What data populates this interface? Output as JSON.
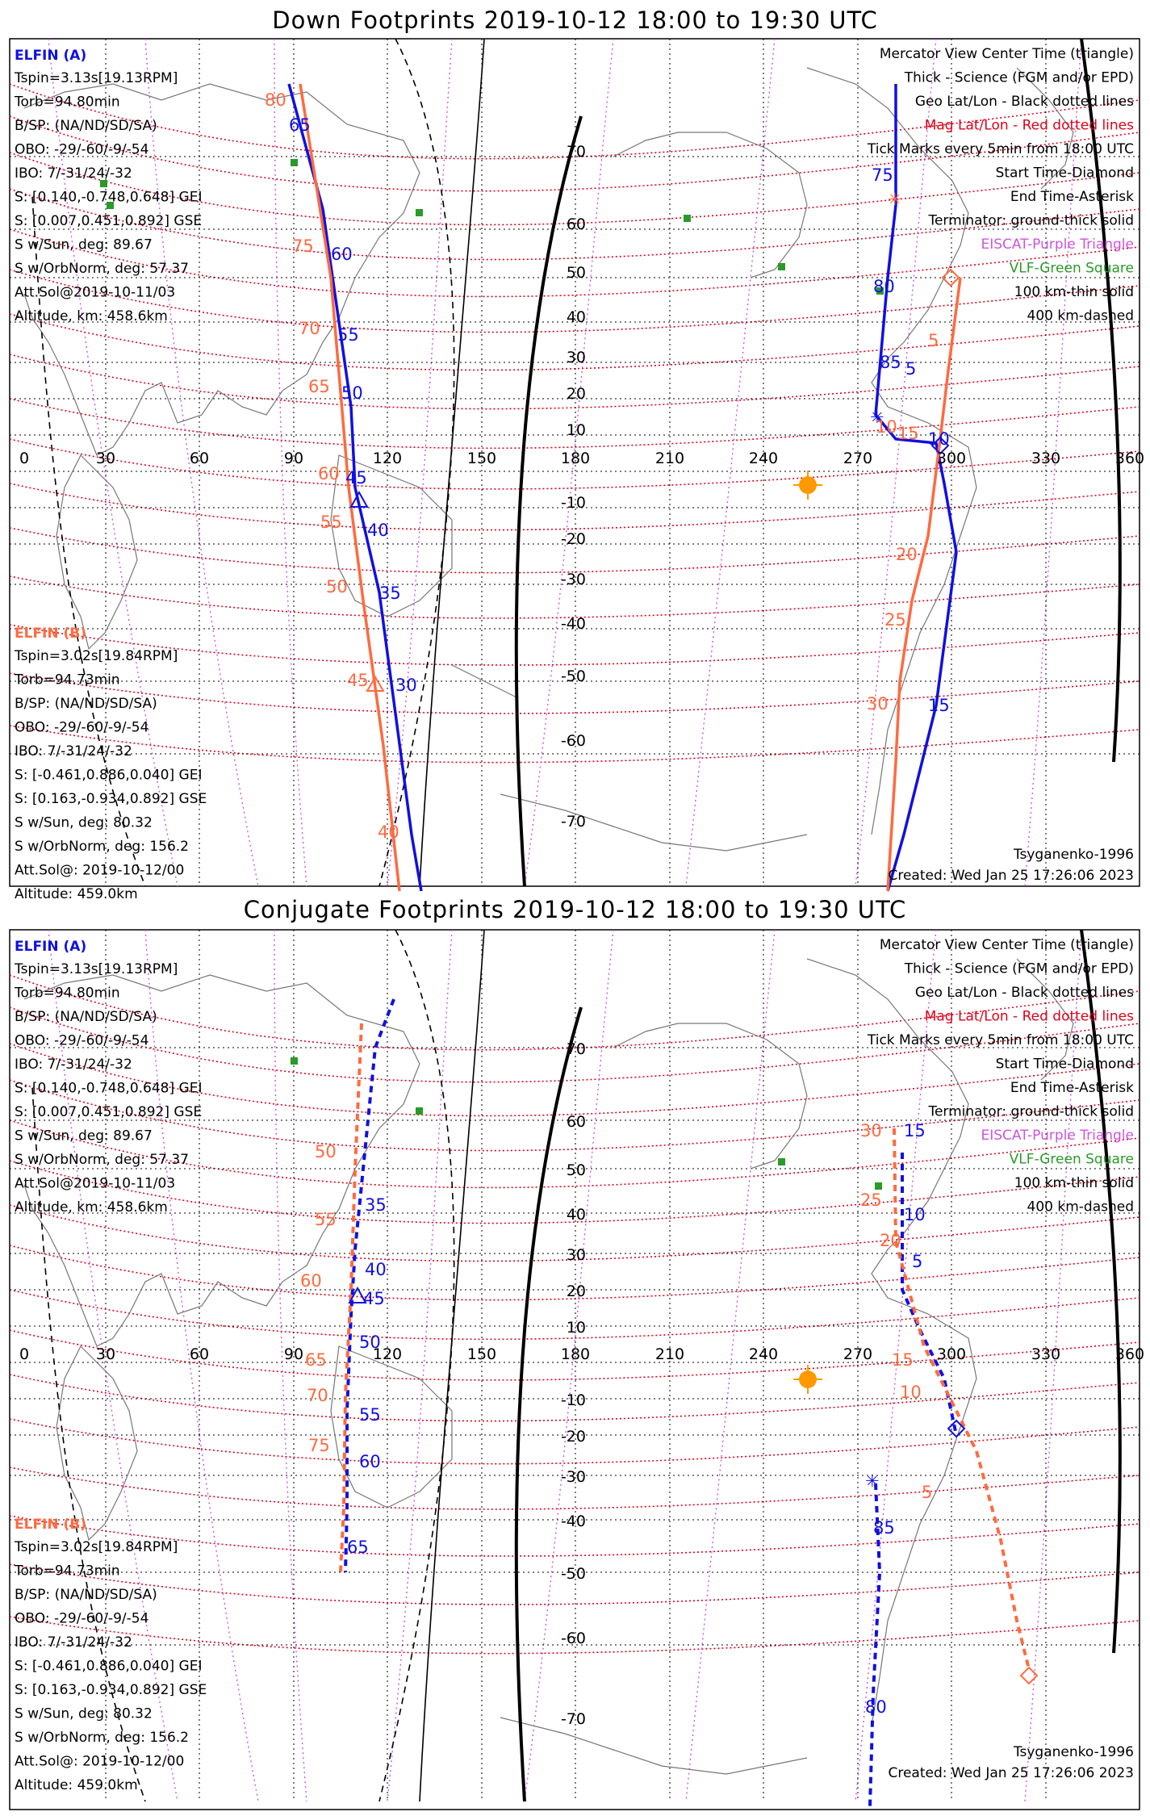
{
  "colors": {
    "elfin_a": "#1010e0",
    "elfin_b": "#ff6a40",
    "mag_grid": "#e0001a",
    "eiscat": "#cc55dd",
    "vlf": "#2a9a2a",
    "sun": "#ff9900"
  },
  "panels": [
    {
      "title": "Down Footprints 2019-10-12 18:00 to 19:30 UTC",
      "elfin_a": {
        "name": "ELFIN (A)",
        "lines": [
          "Tspin=3.13s[19.13RPM]",
          "Torb=94.80min",
          "B/SP: (NA/ND/SD/SA)",
          "OBO: -29/-60/-9/-54",
          "IBO: 7/-31/24/-32",
          "S: [0.140,-0.748,0.648] GEI",
          "S: [0.007,0.451,0.892] GSE",
          "S w/Sun, deg: 89.67",
          "S w/OrbNorm, deg: 57.37",
          "Att.Sol@2019-10-11/03",
          "Altitude, km: 458.6km"
        ]
      },
      "elfin_b": {
        "name": "ELFIN (B)",
        "lines": [
          "Tspin=3.02s[19.84RPM]",
          "Torb=94.73min",
          "B/SP: (NA/ND/SD/SA)",
          "OBO: -29/-60/-9/-54",
          "IBO: 7/-31/24/-32",
          "S: [-0.461,0.886,0.040] GEI",
          "S: [0.163,-0.934,0.892] GSE",
          "S w/Sun, deg: 80.32",
          "S w/OrbNorm, deg: 156.2",
          "Att.Sol@: 2019-10-12/00",
          "Altitude: 459.0km"
        ]
      },
      "legend": [
        "Mercator View Center Time (triangle)",
        "Thick - Science (FGM and/or EPD)",
        "Geo Lat/Lon - Black dotted lines",
        "Mag Lat/Lon - Red dotted lines",
        "Tick Marks every 5min from 18:00 UTC",
        "Start Time-Diamond",
        "End Time-Asterisk",
        "Terminator: ground-thick solid",
        "EISCAT-Purple Triangle",
        "VLF-Green Square",
        "100 km-thin solid",
        "400 km-dashed"
      ],
      "model": "Tsyganenko-1996",
      "created": "Created: Wed Jan 25 17:26:06 2023",
      "lon_ticks": [
        "0",
        "30",
        "60",
        "90",
        "120",
        "150",
        "180",
        "210",
        "240",
        "270",
        "300",
        "330",
        "360"
      ],
      "lat_ticks": [
        "70",
        "60",
        "50",
        "40",
        "30",
        "20",
        "10",
        "-10",
        "-20",
        "-30",
        "-40",
        "-50",
        "-60",
        "-70"
      ],
      "track_a_labels": [
        "65",
        "60",
        "55",
        "50",
        "45",
        "40",
        "35",
        "30",
        "75",
        "80",
        "85",
        "5",
        "10",
        "15"
      ],
      "track_b_labels": [
        "80",
        "75",
        "70",
        "65",
        "60",
        "55",
        "50",
        "45",
        "40",
        "5",
        "10",
        "15",
        "20",
        "25",
        "30"
      ]
    },
    {
      "title": "Conjugate Footprints 2019-10-12 18:00 to 19:30 UTC",
      "elfin_a": {
        "name": "ELFIN (A)",
        "lines": [
          "Tspin=3.13s[19.13RPM]",
          "Torb=94.80min",
          "B/SP: (NA/ND/SD/SA)",
          "OBO: -29/-60/-9/-54",
          "IBO: 7/-31/24/-32",
          "S: [0.140,-0.748,0.648] GEI",
          "S: [0.007,0.451,0.892] GSE",
          "S w/Sun, deg: 89.67",
          "S w/OrbNorm, deg: 57.37",
          "Att.Sol@2019-10-11/03",
          "Altitude, km: 458.6km"
        ]
      },
      "elfin_b": {
        "name": "ELFIN (B)",
        "lines": [
          "Tspin=3.02s[19.84RPM]",
          "Torb=94.73min",
          "B/SP: (NA/ND/SD/SA)",
          "OBO: -29/-60/-9/-54",
          "IBO: 7/-31/24/-32",
          "S: [-0.461,0.886,0.040] GEI",
          "S: [0.163,-0.934,0.892] GSE",
          "S w/Sun, deg: 80.32",
          "S w/OrbNorm, deg: 156.2",
          "Att.Sol@: 2019-10-12/00",
          "Altitude: 459.0km"
        ]
      },
      "legend": [
        "Mercator View Center Time (triangle)",
        "Thick - Science (FGM and/or EPD)",
        "Geo Lat/Lon - Black dotted lines",
        "Mag Lat/Lon - Red dotted lines",
        "Tick Marks every 5min from 18:00 UTC",
        "Start Time-Diamond",
        "End Time-Asterisk",
        "Terminator: ground-thick solid",
        "EISCAT-Purple Triangle",
        "VLF-Green Square",
        "100 km-thin solid",
        "400 km-dashed"
      ],
      "model": "Tsyganenko-1996",
      "created": "Created: Wed Jan 25 17:26:06 2023",
      "lon_ticks": [
        "0",
        "30",
        "60",
        "90",
        "120",
        "150",
        "180",
        "210",
        "240",
        "270",
        "300",
        "330",
        "360"
      ],
      "lat_ticks": [
        "70",
        "60",
        "50",
        "40",
        "30",
        "20",
        "10",
        "-10",
        "-20",
        "-30",
        "-40",
        "-50",
        "-60",
        "-70"
      ],
      "track_a_labels": [
        "35",
        "40",
        "45",
        "50",
        "55",
        "60",
        "65",
        "15",
        "10",
        "5",
        "85",
        "80"
      ],
      "track_b_labels": [
        "50",
        "55",
        "60",
        "65",
        "70",
        "75",
        "30",
        "25",
        "20",
        "15",
        "10",
        "5"
      ]
    }
  ]
}
